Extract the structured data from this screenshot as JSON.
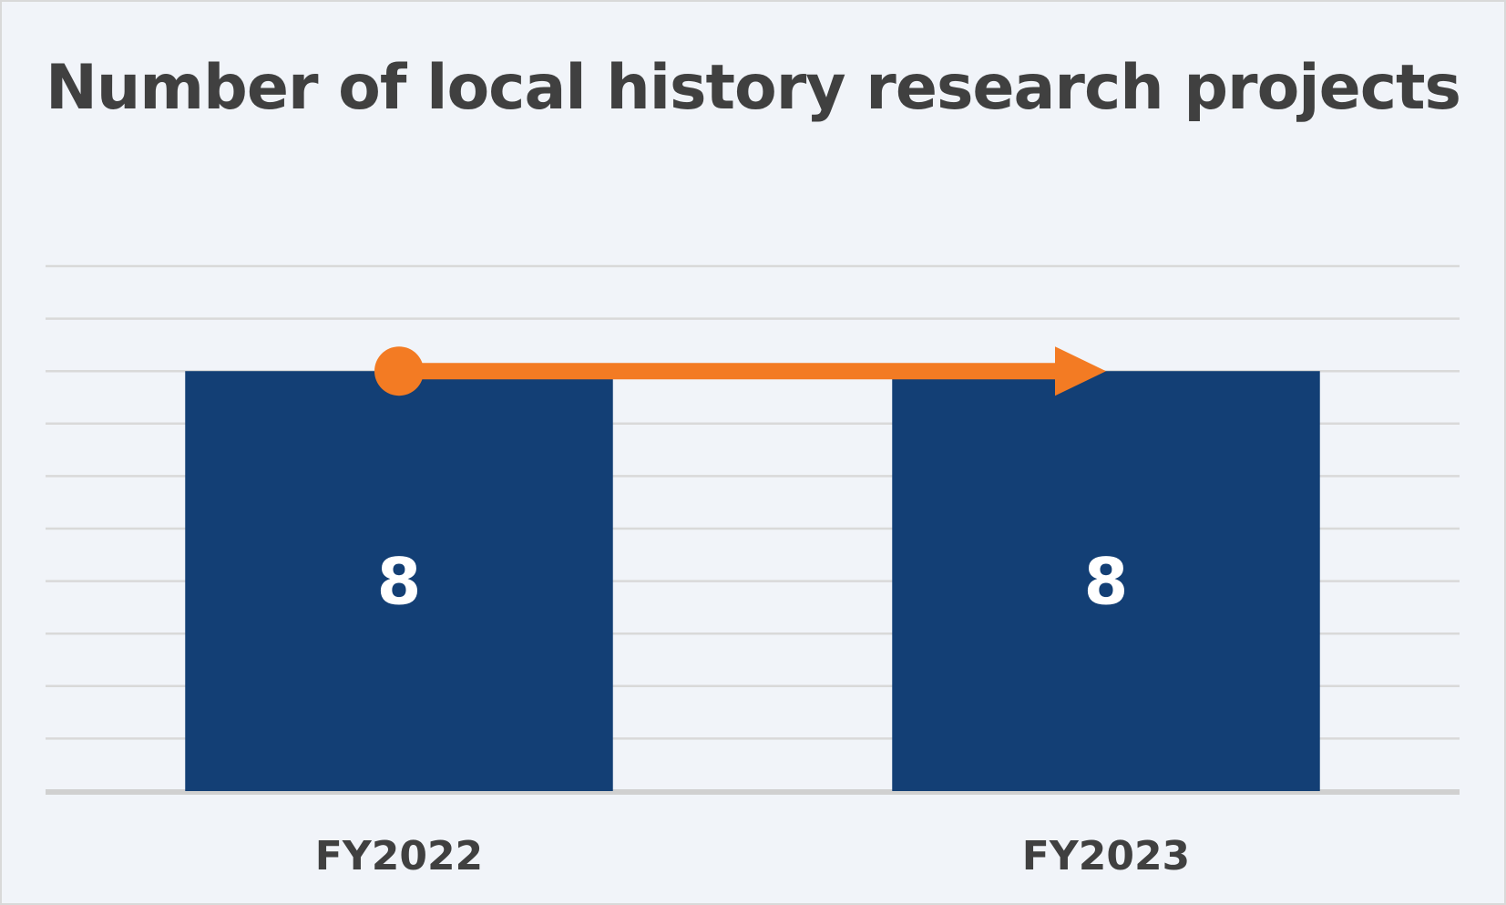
{
  "chart_data": {
    "type": "bar",
    "title": "Number of local history research projects",
    "categories": [
      "FY2022",
      "FY2023"
    ],
    "values": [
      8,
      8
    ],
    "ylim": [
      0,
      10
    ],
    "grid": true,
    "legend": "none",
    "annotation": "trend-arrow",
    "colors": {
      "bar": "#133f75",
      "arrow": "#f37b23",
      "grid": "#d9d9d9",
      "axis": "#d0d0d0",
      "background": "#f1f4f9",
      "text": "#404040",
      "value_label": "#ffffff"
    }
  }
}
